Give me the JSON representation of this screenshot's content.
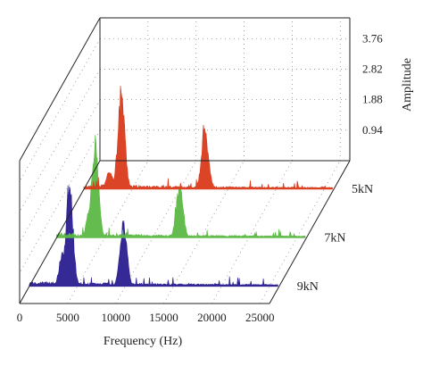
{
  "chart_data": {
    "type": "line",
    "style": "3d-waterfall",
    "title": "",
    "xlabel": "Frequency (Hz)",
    "zlabel": "Amplitude",
    "x_ticks": [
      "0",
      "5000",
      "10000",
      "15000",
      "20000",
      "25000"
    ],
    "xlim": [
      0,
      26000
    ],
    "z_ticks": [
      "0.94",
      "1.88",
      "2.82",
      "3.76"
    ],
    "zlim": [
      0,
      4.4
    ],
    "grid": true,
    "series": [
      {
        "name": "9kN",
        "color": "#2a1f8f",
        "peaks": [
          {
            "x": 4200,
            "amplitude": 3.4
          },
          {
            "x": 9800,
            "amplitude": 2.2
          },
          {
            "x": 3500,
            "amplitude": 1.2
          }
        ]
      },
      {
        "name": "7kN",
        "color": "#5cb845",
        "peaks": [
          {
            "x": 4000,
            "amplitude": 3.2
          },
          {
            "x": 12800,
            "amplitude": 1.8
          },
          {
            "x": 3500,
            "amplitude": 1.0
          }
        ]
      },
      {
        "name": "5kN",
        "color": "#d93a1a",
        "peaks": [
          {
            "x": 3900,
            "amplitude": 3.2
          },
          {
            "x": 12600,
            "amplitude": 2.0
          },
          {
            "x": 2700,
            "amplitude": 0.6
          }
        ]
      }
    ]
  }
}
